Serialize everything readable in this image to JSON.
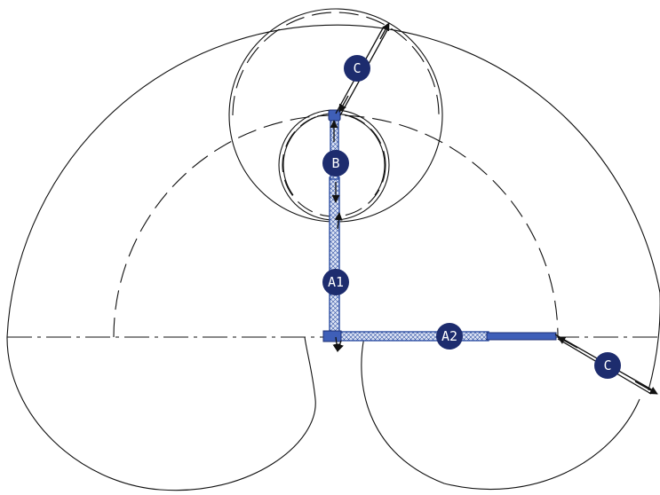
{
  "labels": {
    "c_top": "C",
    "b": "B",
    "a1": "A1",
    "a2": "A2",
    "c_right": "C"
  },
  "colors": {
    "badge_fill": "#1d2c6e",
    "badge_text": "#ffffff",
    "boom": "#2f4fa3",
    "line": "#111111"
  }
}
